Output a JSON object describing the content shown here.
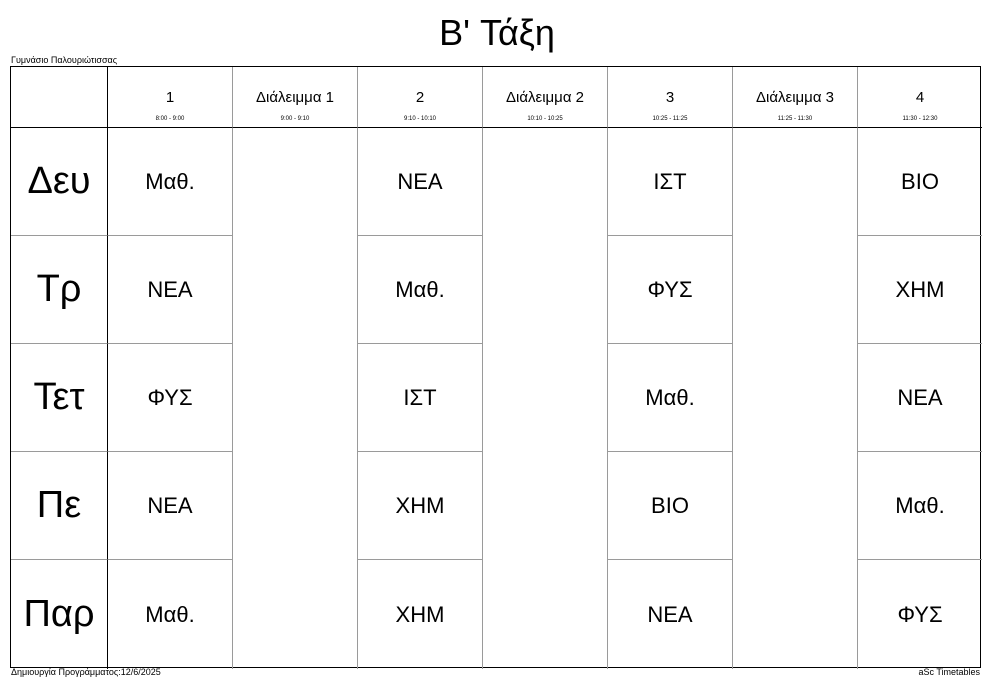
{
  "title": "B' Τάξη",
  "school": "Γυμνάσιο Παλουριώτισσας",
  "footer": {
    "left": "Δημιουργία Προγράμματος:12/6/2025",
    "right": "aSc Timetables"
  },
  "periods": [
    {
      "label": "1",
      "time": "8:00 - 9:00"
    },
    {
      "label": "Διάλειμμα 1",
      "time": "9:00 - 9:10"
    },
    {
      "label": "2",
      "time": "9:10 - 10:10"
    },
    {
      "label": "Διάλειμμα 2",
      "time": "10:10 - 10:25"
    },
    {
      "label": "3",
      "time": "10:25 - 11:25"
    },
    {
      "label": "Διάλειμμα 3",
      "time": "11:25 - 11:30"
    },
    {
      "label": "4",
      "time": "11:30 - 12:30"
    }
  ],
  "days": [
    {
      "name": "Δευ",
      "lessons": [
        "Μαθ.",
        "ΝΕΑ",
        "ΙΣΤ",
        "ΒΙΟ"
      ]
    },
    {
      "name": "Τρ",
      "lessons": [
        "ΝΕΑ",
        "Μαθ.",
        "ΦΥΣ",
        "ΧΗΜ"
      ]
    },
    {
      "name": "Τετ",
      "lessons": [
        "ΦΥΣ",
        "ΙΣΤ",
        "Μαθ.",
        "ΝΕΑ"
      ]
    },
    {
      "name": "Πε",
      "lessons": [
        "ΝΕΑ",
        "ΧΗΜ",
        "ΒΙΟ",
        "Μαθ."
      ]
    },
    {
      "name": "Παρ",
      "lessons": [
        "Μαθ.",
        "ΧΗΜ",
        "ΝΕΑ",
        "ΦΥΣ"
      ]
    }
  ]
}
